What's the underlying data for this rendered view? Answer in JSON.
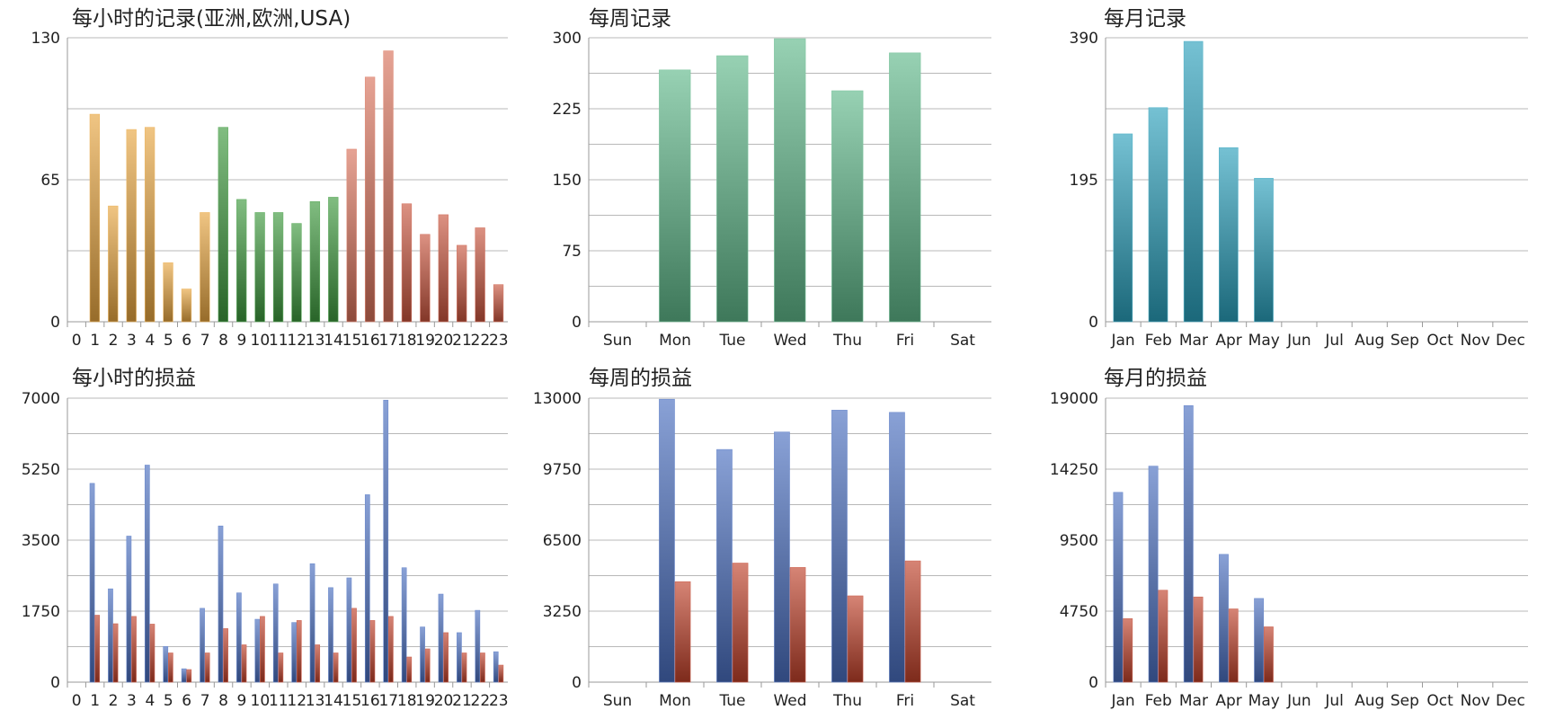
{
  "charts": [
    {
      "id": "hourly-records",
      "type": "bar",
      "title": "每小时的记录(亚洲,欧洲,USA)",
      "ylim": [
        0,
        130
      ],
      "yticks": [
        "0",
        "65",
        "130"
      ],
      "categories": [
        "0",
        "1",
        "2",
        "3",
        "4",
        "5",
        "6",
        "7",
        "8",
        "9",
        "10",
        "11",
        "12",
        "13",
        "14",
        "15",
        "16",
        "17",
        "18",
        "19",
        "20",
        "21",
        "22",
        "23"
      ],
      "series": [
        {
          "values": [
            0,
            95,
            53,
            88,
            89,
            27,
            15,
            50,
            89,
            56,
            50,
            50,
            45,
            55,
            57,
            79,
            112,
            124,
            54,
            40,
            49,
            35,
            43,
            17
          ]
        }
      ],
      "bar_colors": [
        "#ffffff",
        "#e8a640",
        "#e8a640",
        "#e8a640",
        "#e8a640",
        "#e8a640",
        "#e8a640",
        "#e8a640",
        "#3d9a3d",
        "#3d9a3d",
        "#3d9a3d",
        "#3d9a3d",
        "#3d9a3d",
        "#3d9a3d",
        "#3d9a3d",
        "#d9725a",
        "#d9725a",
        "#d9725a",
        "#c9553e",
        "#c9553e",
        "#c9553e",
        "#c9553e",
        "#c9553e",
        "#c9553e"
      ]
    },
    {
      "id": "weekly-records",
      "type": "bar",
      "title": "每周记录",
      "ylim": [
        0,
        300
      ],
      "yticks": [
        "0",
        "75",
        "150",
        "225",
        "300"
      ],
      "categories": [
        "Sun",
        "Mon",
        "Tue",
        "Wed",
        "Thu",
        "Fri",
        "Sat"
      ],
      "series": [
        {
          "values": [
            0,
            266,
            281,
            299,
            244,
            284,
            0
          ]
        }
      ],
      "bar_colors": [
        "#5fb88a"
      ]
    },
    {
      "id": "monthly-records",
      "type": "bar",
      "title": "每月记录",
      "ylim": [
        0,
        390
      ],
      "yticks": [
        "0",
        "195",
        "390"
      ],
      "categories": [
        "Jan",
        "Feb",
        "Mar",
        "Apr",
        "May",
        "Jun",
        "Jul",
        "Aug",
        "Sep",
        "Oct",
        "Nov",
        "Dec"
      ],
      "series": [
        {
          "values": [
            258,
            294,
            385,
            239,
            197,
            0,
            0,
            0,
            0,
            0,
            0,
            0
          ]
        }
      ],
      "bar_colors": [
        "#2aa0bb"
      ]
    },
    {
      "id": "hourly-profit",
      "type": "bar",
      "title": "每小时的损益",
      "ylim": [
        0,
        7000
      ],
      "yticks": [
        "0",
        "1750",
        "3500",
        "5250",
        "7000"
      ],
      "categories": [
        "0",
        "1",
        "2",
        "3",
        "4",
        "5",
        "6",
        "7",
        "8",
        "9",
        "10",
        "11",
        "12",
        "13",
        "14",
        "15",
        "16",
        "17",
        "18",
        "19",
        "20",
        "21",
        "22",
        "23"
      ],
      "series": [
        {
          "values": [
            0,
            4900,
            2300,
            3600,
            5350,
            880,
            330,
            1820,
            3850,
            2200,
            1550,
            2420,
            1470,
            2920,
            2330,
            2570,
            4620,
            6950,
            2820,
            1360,
            2170,
            1220,
            1770,
            750
          ]
        },
        {
          "values": [
            0,
            1650,
            1440,
            1620,
            1430,
            720,
            310,
            720,
            1320,
            920,
            1620,
            720,
            1520,
            920,
            720,
            1820,
            1520,
            1620,
            620,
            820,
            1220,
            720,
            720,
            420
          ]
        }
      ],
      "bar_colors": [
        "#4a6fc0",
        "#c0412a"
      ]
    },
    {
      "id": "weekly-profit",
      "type": "bar",
      "title": "每周的损益",
      "ylim": [
        0,
        13000
      ],
      "yticks": [
        "0",
        "3250",
        "6500",
        "9750",
        "13000"
      ],
      "categories": [
        "Sun",
        "Mon",
        "Tue",
        "Wed",
        "Thu",
        "Fri",
        "Sat"
      ],
      "series": [
        {
          "values": [
            0,
            12950,
            10650,
            11450,
            12450,
            12350,
            0
          ]
        },
        {
          "values": [
            0,
            4600,
            5450,
            5250,
            3950,
            5550,
            0
          ]
        }
      ],
      "bar_colors": [
        "#4a6fc0",
        "#c0412a"
      ]
    },
    {
      "id": "monthly-profit",
      "type": "bar",
      "title": "每月的损益",
      "ylim": [
        0,
        19000
      ],
      "yticks": [
        "0",
        "4750",
        "9500",
        "14250",
        "19000"
      ],
      "categories": [
        "Jan",
        "Feb",
        "Mar",
        "Apr",
        "May",
        "Jun",
        "Jul",
        "Aug",
        "Sep",
        "Oct",
        "Nov",
        "Dec"
      ],
      "series": [
        {
          "values": [
            12700,
            14450,
            18500,
            8550,
            5600,
            0,
            0,
            0,
            0,
            0,
            0,
            0
          ]
        },
        {
          "values": [
            4250,
            6150,
            5700,
            4900,
            3700,
            0,
            0,
            0,
            0,
            0,
            0,
            0
          ]
        }
      ],
      "bar_colors": [
        "#4a6fc0",
        "#c0412a"
      ]
    }
  ]
}
